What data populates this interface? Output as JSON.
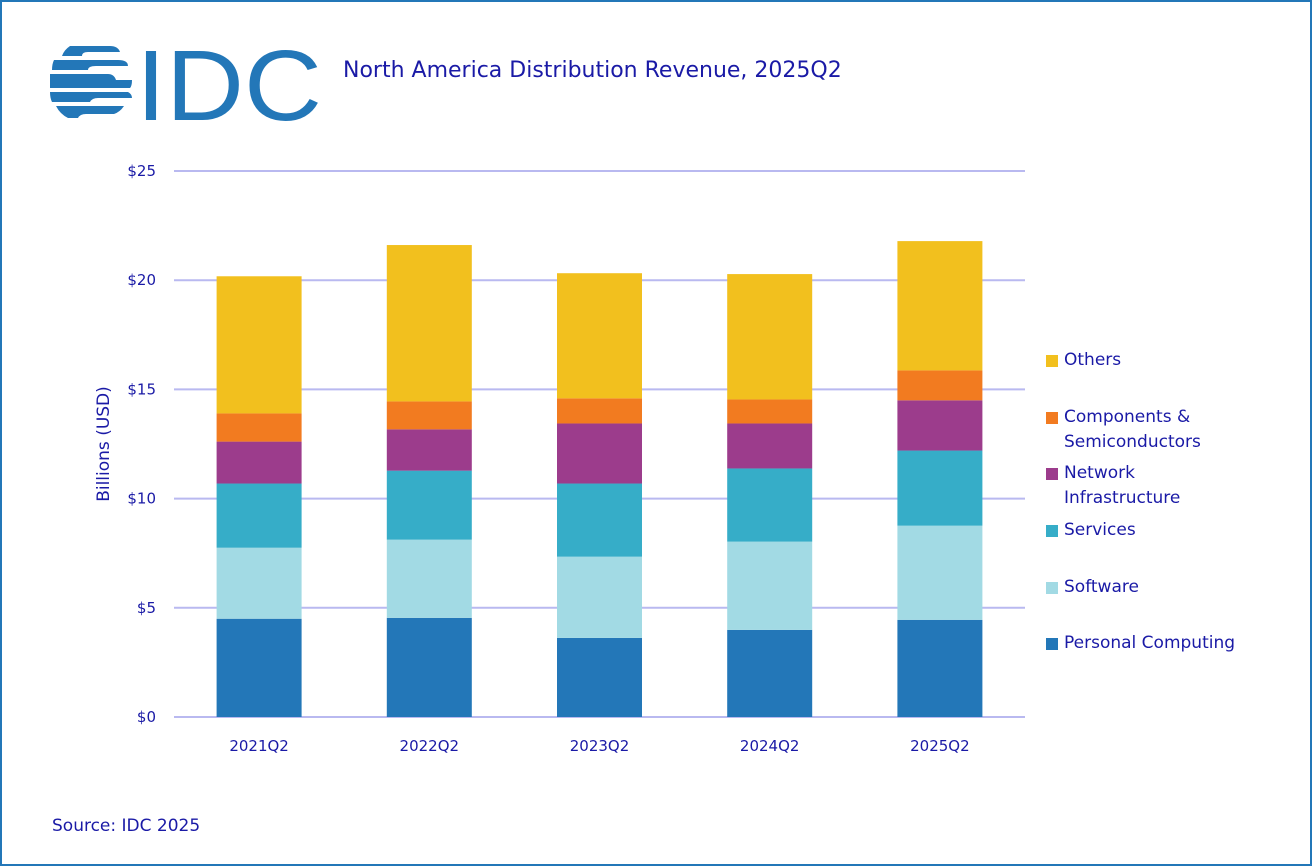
{
  "header": {
    "logo_text": "IDC",
    "title": "North America Distribution Revenue, 2025Q2"
  },
  "footer": {
    "source": "Source: IDC 2025"
  },
  "colors": {
    "frame": "#2377b8",
    "logo": "#2377b8",
    "text": "#1a1aa6",
    "gridline": "#b9b9f0"
  },
  "chart_data": {
    "type": "bar",
    "stacked": true,
    "title": "North America Distribution Revenue, 2025Q2",
    "xlabel": "",
    "ylabel": "Billions (USD)",
    "ylim": [
      0,
      25
    ],
    "yticks": [
      0,
      5,
      10,
      15,
      20,
      25
    ],
    "ytick_labels": [
      "$0",
      "$5",
      "$10",
      "$15",
      "$20",
      "$25"
    ],
    "grid": true,
    "legend_position": "right",
    "categories": [
      "2021Q2",
      "2022Q2",
      "2023Q2",
      "2024Q2",
      "2025Q2"
    ],
    "series": [
      {
        "name": "Personal Computing",
        "color": "#2377b8",
        "values": [
          4.5,
          4.54,
          3.62,
          3.99,
          4.45
        ]
      },
      {
        "name": "Software",
        "color": "#a2dae4",
        "values": [
          3.25,
          3.58,
          3.72,
          4.04,
          4.31
        ]
      },
      {
        "name": "Services",
        "color": "#36adc8",
        "values": [
          2.94,
          3.16,
          3.35,
          3.35,
          3.44
        ]
      },
      {
        "name": "Network Infrastructure",
        "color": "#9c3c8c",
        "values": [
          1.92,
          1.89,
          2.75,
          2.06,
          2.3
        ]
      },
      {
        "name": "Components & Semiconductors",
        "color": "#f27b20",
        "values": [
          1.29,
          1.28,
          1.15,
          1.1,
          1.37
        ]
      },
      {
        "name": "Others",
        "color": "#f2c01e",
        "values": [
          6.28,
          7.16,
          5.73,
          5.74,
          5.92
        ]
      }
    ],
    "legend": [
      {
        "label": "Others",
        "color": "#f2c01e"
      },
      {
        "label": "Components &\nSemiconductors",
        "color": "#f27b20"
      },
      {
        "label": "Network\nInfrastructure",
        "color": "#9c3c8c"
      },
      {
        "label": "Services",
        "color": "#36adc8"
      },
      {
        "label": "Software",
        "color": "#a2dae4"
      },
      {
        "label": "Personal Computing",
        "color": "#2377b8"
      }
    ]
  }
}
